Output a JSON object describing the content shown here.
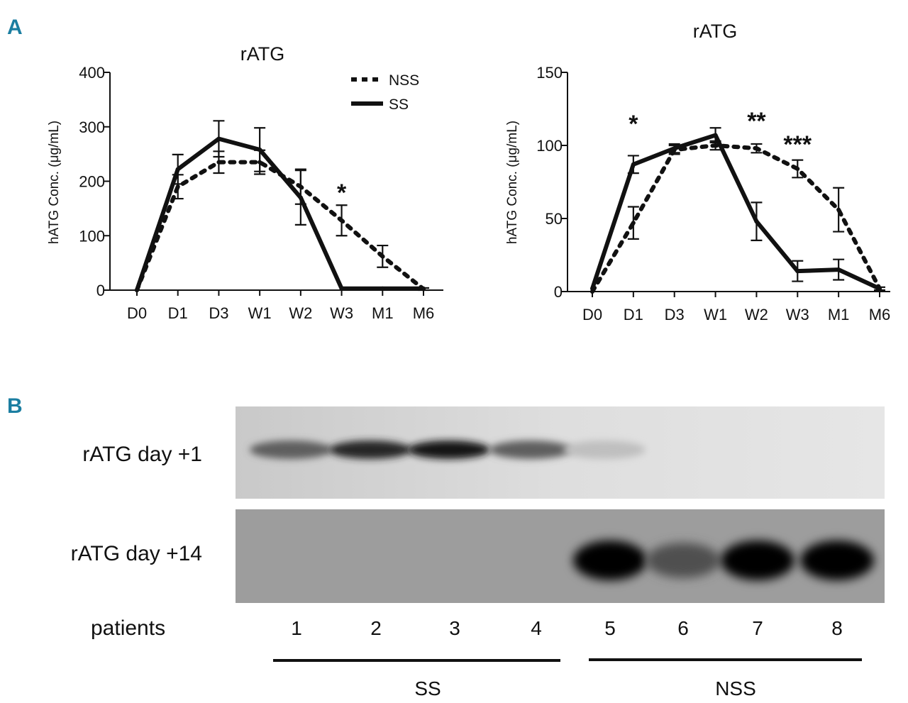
{
  "panels": {
    "a": "A",
    "b": "B"
  },
  "chart_data": [
    {
      "type": "line",
      "title": "rATG",
      "xlabel": "",
      "ylabel": "hATG Conc. (μg/mL)",
      "categories": [
        "D0",
        "D1",
        "D3",
        "W1",
        "W2",
        "W3",
        "M1",
        "M6"
      ],
      "ylim": [
        0,
        400
      ],
      "yticks": [
        0,
        100,
        200,
        300,
        400
      ],
      "legend_position": "top-right",
      "series": [
        {
          "name": "NSS",
          "style": "dotted",
          "values": [
            0,
            190,
            235,
            235,
            190,
            128,
            62,
            2
          ],
          "errors": [
            0,
            22,
            20,
            22,
            32,
            28,
            20,
            2
          ]
        },
        {
          "name": "SS",
          "style": "solid",
          "values": [
            0,
            222,
            278,
            258,
            170,
            3,
            3,
            3
          ],
          "errors": [
            0,
            27,
            33,
            40,
            50,
            0,
            0,
            0
          ]
        }
      ],
      "annotations": [
        {
          "text": "*",
          "category": "W3",
          "y": 180
        }
      ]
    },
    {
      "type": "line",
      "title": "rATG",
      "xlabel": "",
      "ylabel": "hATG Conc. (μg/mL)",
      "categories": [
        "D0",
        "D1",
        "D3",
        "W1",
        "W2",
        "W3",
        "M1",
        "M6"
      ],
      "ylim": [
        0,
        150
      ],
      "yticks": [
        0,
        50,
        100,
        150
      ],
      "series": [
        {
          "name": "NSS",
          "style": "dotted",
          "values": [
            0,
            47,
            97,
            100,
            98,
            84,
            56,
            2
          ],
          "errors": [
            0,
            11,
            3,
            3,
            3,
            6,
            15,
            1
          ]
        },
        {
          "name": "SS",
          "style": "solid",
          "values": [
            2,
            87,
            98,
            107,
            48,
            14,
            15,
            2
          ],
          "errors": [
            0,
            6,
            3,
            5,
            13,
            7,
            7,
            0
          ]
        }
      ],
      "annotations": [
        {
          "text": "*",
          "category": "D1",
          "y": 115
        },
        {
          "text": "**",
          "category": "W2",
          "y": 117
        },
        {
          "text": "***",
          "category": "W3",
          "y": 101
        }
      ]
    }
  ],
  "blot": {
    "row_labels": [
      "rATG day +1",
      "rATG day +14"
    ],
    "patients_label": "patients",
    "lanes": [
      "1",
      "2",
      "3",
      "4",
      "5",
      "6",
      "7",
      "8"
    ],
    "groups": [
      {
        "name": "SS",
        "lanes": [
          1,
          2,
          3,
          4
        ]
      },
      {
        "name": "NSS",
        "lanes": [
          5,
          6,
          7,
          8
        ]
      }
    ],
    "band_intensity_day1": [
      0.55,
      0.85,
      0.95,
      0.55,
      0.05,
      0.02,
      0.02,
      0.02
    ],
    "band_intensity_day14": [
      0.0,
      0.0,
      0.0,
      0.0,
      1.0,
      0.45,
      1.0,
      1.0
    ]
  }
}
